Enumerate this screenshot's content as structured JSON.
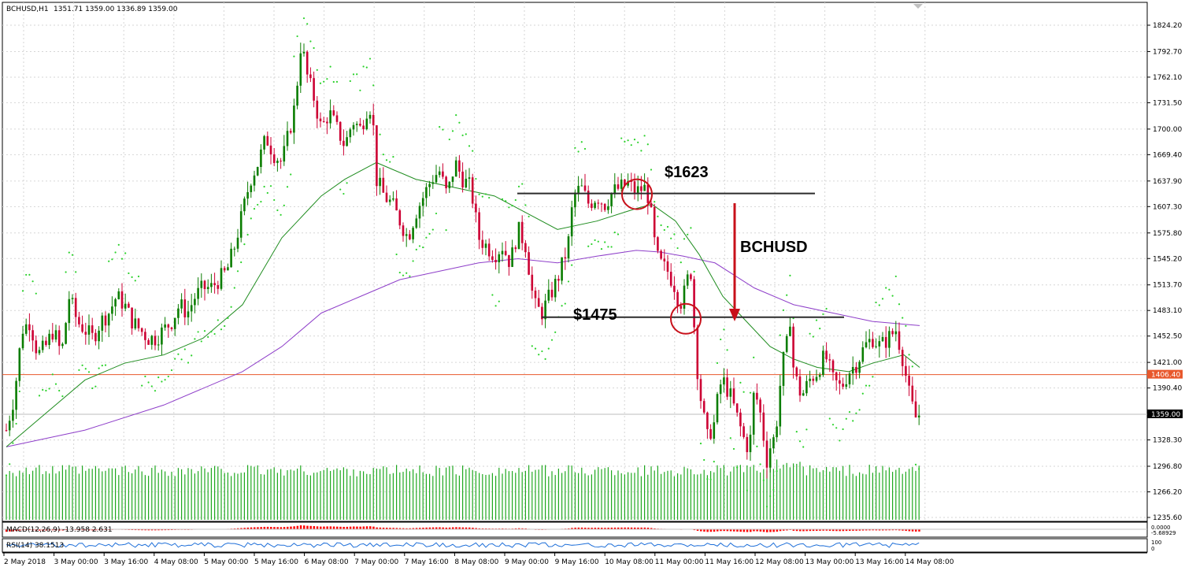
{
  "header": {
    "symbol_label": "BCHUSD,H1",
    "ohlc_label": "1351.71 1359.00 1336.89 1359.00"
  },
  "chart_data": {
    "type": "candlestick",
    "symbol": "BCHUSD",
    "timeframe": "H1",
    "price_ticks": [
      1824.2,
      1792.7,
      1762.1,
      1731.5,
      1700.0,
      1669.4,
      1637.9,
      1607.3,
      1575.8,
      1545.2,
      1513.7,
      1483.1,
      1452.5,
      1421.0,
      1390.4,
      1359.0,
      1328.3,
      1296.8,
      1266.2,
      1235.6
    ],
    "price_tick_labels": [
      "1824.20",
      "1792.70",
      "1762.10",
      "1731.50",
      "1700.00",
      "1669.40",
      "1637.90",
      "1607.30",
      "1575.80",
      "1545.20",
      "1513.70",
      "1483.10",
      "1452.50",
      "1421.00",
      "1390.40",
      "1359.00",
      "1328.30",
      "1296.80",
      "1266.20",
      "1235.60"
    ],
    "y_range": [
      1235.6,
      1836.0
    ],
    "time_labels": [
      "2 May 2018",
      "3 May 00:00",
      "3 May 16:00",
      "4 May 08:00",
      "5 May 00:00",
      "5 May 16:00",
      "6 May 08:00",
      "7 May 00:00",
      "7 May 16:00",
      "8 May 08:00",
      "9 May 00:00",
      "9 May 16:00",
      "10 May 08:00",
      "11 May 00:00",
      "11 May 16:00",
      "12 May 08:00",
      "13 May 00:00",
      "13 May 16:00",
      "14 May 08:00"
    ],
    "price_path": [
      [
        0,
        1340
      ],
      [
        10,
        1380
      ],
      [
        20,
        1460
      ],
      [
        30,
        1470
      ],
      [
        40,
        1430
      ],
      [
        50,
        1440
      ],
      [
        60,
        1460
      ],
      [
        70,
        1430
      ],
      [
        80,
        1500
      ],
      [
        90,
        1470
      ],
      [
        100,
        1460
      ],
      [
        110,
        1450
      ],
      [
        120,
        1470
      ],
      [
        130,
        1480
      ],
      [
        140,
        1500
      ],
      [
        150,
        1490
      ],
      [
        160,
        1470
      ],
      [
        170,
        1460
      ],
      [
        180,
        1450
      ],
      [
        190,
        1450
      ],
      [
        200,
        1460
      ],
      [
        210,
        1470
      ],
      [
        220,
        1490
      ],
      [
        230,
        1480
      ],
      [
        240,
        1500
      ],
      [
        250,
        1510
      ],
      [
        260,
        1510
      ],
      [
        270,
        1520
      ],
      [
        280,
        1530
      ],
      [
        290,
        1560
      ],
      [
        300,
        1600
      ],
      [
        310,
        1640
      ],
      [
        320,
        1660
      ],
      [
        330,
        1690
      ],
      [
        340,
        1670
      ],
      [
        350,
        1660
      ],
      [
        360,
        1700
      ],
      [
        365,
        1720
      ],
      [
        370,
        1760
      ],
      [
        375,
        1810
      ],
      [
        380,
        1770
      ],
      [
        390,
        1740
      ],
      [
        400,
        1700
      ],
      [
        410,
        1720
      ],
      [
        420,
        1700
      ],
      [
        430,
        1680
      ],
      [
        440,
        1710
      ],
      [
        450,
        1700
      ],
      [
        460,
        1730
      ],
      [
        465,
        1720
      ],
      [
        470,
        1640
      ],
      [
        480,
        1620
      ],
      [
        490,
        1610
      ],
      [
        500,
        1590
      ],
      [
        510,
        1570
      ],
      [
        520,
        1600
      ],
      [
        530,
        1620
      ],
      [
        540,
        1640
      ],
      [
        550,
        1650
      ],
      [
        560,
        1620
      ],
      [
        570,
        1660
      ],
      [
        580,
        1640
      ],
      [
        590,
        1630
      ],
      [
        600,
        1570
      ],
      [
        610,
        1560
      ],
      [
        620,
        1550
      ],
      [
        630,
        1560
      ],
      [
        640,
        1540
      ],
      [
        650,
        1580
      ],
      [
        660,
        1560
      ],
      [
        670,
        1490
      ],
      [
        680,
        1480
      ],
      [
        690,
        1500
      ],
      [
        700,
        1520
      ],
      [
        710,
        1550
      ],
      [
        715,
        1570
      ],
      [
        720,
        1620
      ],
      [
        730,
        1630
      ],
      [
        740,
        1610
      ],
      [
        750,
        1620
      ],
      [
        760,
        1610
      ],
      [
        770,
        1625
      ],
      [
        780,
        1630
      ],
      [
        790,
        1635
      ],
      [
        800,
        1625
      ],
      [
        810,
        1630
      ],
      [
        815,
        1620
      ],
      [
        820,
        1590
      ],
      [
        825,
        1550
      ],
      [
        830,
        1540
      ],
      [
        840,
        1530
      ],
      [
        850,
        1510
      ],
      [
        855,
        1490
      ],
      [
        860,
        1500
      ],
      [
        865,
        1520
      ],
      [
        870,
        1530
      ],
      [
        875,
        1440
      ],
      [
        880,
        1390
      ],
      [
        885,
        1360
      ],
      [
        890,
        1330
      ],
      [
        900,
        1350
      ],
      [
        905,
        1390
      ],
      [
        910,
        1400
      ],
      [
        920,
        1380
      ],
      [
        930,
        1350
      ],
      [
        940,
        1320
      ],
      [
        945,
        1330
      ],
      [
        950,
        1390
      ],
      [
        955,
        1370
      ],
      [
        960,
        1350
      ],
      [
        965,
        1300
      ],
      [
        970,
        1320
      ],
      [
        975,
        1330
      ],
      [
        980,
        1360
      ],
      [
        985,
        1420
      ],
      [
        990,
        1430
      ],
      [
        995,
        1480
      ],
      [
        1000,
        1410
      ],
      [
        1010,
        1380
      ],
      [
        1020,
        1400
      ],
      [
        1030,
        1410
      ],
      [
        1040,
        1430
      ],
      [
        1050,
        1400
      ],
      [
        1060,
        1390
      ],
      [
        1070,
        1410
      ],
      [
        1080,
        1420
      ],
      [
        1090,
        1440
      ],
      [
        1100,
        1450
      ],
      [
        1110,
        1440
      ],
      [
        1120,
        1450
      ],
      [
        1130,
        1460
      ],
      [
        1140,
        1420
      ],
      [
        1145,
        1390
      ],
      [
        1150,
        1370
      ],
      [
        1155,
        1355
      ],
      [
        1160,
        1359
      ]
    ],
    "ma_green": [
      [
        0,
        1320
      ],
      [
        50,
        1360
      ],
      [
        100,
        1400
      ],
      [
        150,
        1420
      ],
      [
        200,
        1430
      ],
      [
        250,
        1450
      ],
      [
        300,
        1490
      ],
      [
        350,
        1570
      ],
      [
        400,
        1620
      ],
      [
        430,
        1640
      ],
      [
        470,
        1660
      ],
      [
        520,
        1640
      ],
      [
        570,
        1630
      ],
      [
        620,
        1620
      ],
      [
        660,
        1600
      ],
      [
        700,
        1580
      ],
      [
        750,
        1590
      ],
      [
        800,
        1605
      ],
      [
        820,
        1610
      ],
      [
        850,
        1590
      ],
      [
        880,
        1550
      ],
      [
        910,
        1500
      ],
      [
        940,
        1470
      ],
      [
        970,
        1440
      ],
      [
        1000,
        1425
      ],
      [
        1030,
        1415
      ],
      [
        1070,
        1410
      ],
      [
        1100,
        1420
      ],
      [
        1140,
        1430
      ],
      [
        1160,
        1415
      ]
    ],
    "ma_purple": [
      [
        0,
        1320
      ],
      [
        100,
        1340
      ],
      [
        200,
        1370
      ],
      [
        300,
        1410
      ],
      [
        350,
        1440
      ],
      [
        400,
        1480
      ],
      [
        450,
        1500
      ],
      [
        500,
        1520
      ],
      [
        550,
        1530
      ],
      [
        600,
        1540
      ],
      [
        650,
        1545
      ],
      [
        700,
        1540
      ],
      [
        750,
        1548
      ],
      [
        800,
        1555
      ],
      [
        830,
        1553
      ],
      [
        860,
        1548
      ],
      [
        900,
        1540
      ],
      [
        950,
        1510
      ],
      [
        1000,
        1490
      ],
      [
        1050,
        1480
      ],
      [
        1100,
        1470
      ],
      [
        1160,
        1465
      ]
    ],
    "volume_bars_heights_relative": "uniform",
    "current_price": 1359.0,
    "current_price_label": "1359.00",
    "reference_price": 1406.4,
    "reference_price_label": "1406.40",
    "annotations": {
      "resistance_label": "$1623",
      "resistance_value": 1623,
      "support_label": "$1475",
      "support_value": 1475,
      "pair_label": "BCHUSD"
    },
    "macd_label": "MACD(12,26,9) -13.958 2.631",
    "macd_axis_labels": [
      "0.0000",
      "-5.68929"
    ],
    "rsi_label": "RSI(14) 38.1513",
    "rsi_axis_labels": [
      "100",
      "0"
    ]
  },
  "colors": {
    "bull": "#0a7d00",
    "bear": "#cc0033",
    "ma_green": "#1e8c1e",
    "ma_purple": "#8e3ec9",
    "psar": "#2bd12b",
    "volume": "#1fa81f",
    "reference_line": "#e8582c",
    "arrow": "#c8101a",
    "circle": "#c8101a"
  }
}
